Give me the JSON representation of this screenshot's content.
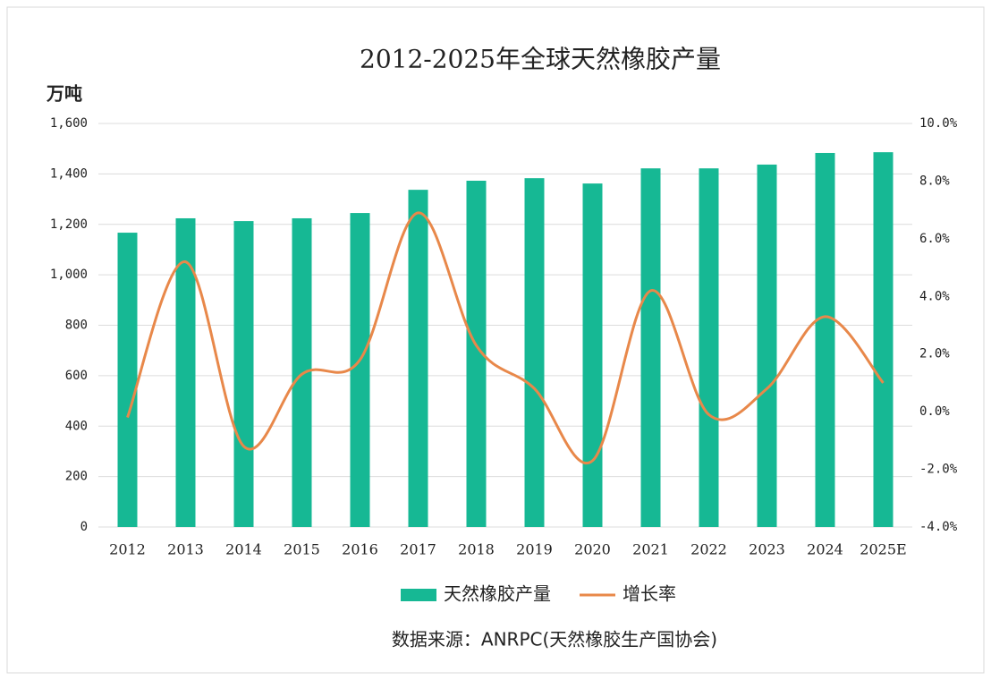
{
  "chart_data": {
    "type": "bar-line",
    "title": "2012-2025年全球天然橡胶产量",
    "y_label": "万吨",
    "source": "数据来源：ANRPC(天然橡胶生产国协会)",
    "categories": [
      "2012",
      "2013",
      "2014",
      "2015",
      "2016",
      "2017",
      "2018",
      "2019",
      "2020",
      "2021",
      "2022",
      "2023",
      "2024",
      "2025E"
    ],
    "series": [
      {
        "name": "天然橡胶产量",
        "type": "bar",
        "color": "#16b894",
        "values": [
          1167,
          1224,
          1213,
          1224,
          1245,
          1337,
          1373,
          1383,
          1362,
          1422,
          1422,
          1437,
          1483,
          1486
        ]
      },
      {
        "name": "增长率",
        "type": "line",
        "axis": "y2",
        "color": "#e8884a",
        "values": [
          -0.2,
          5.2,
          -1.2,
          1.3,
          1.8,
          6.9,
          2.3,
          0.8,
          -1.7,
          4.2,
          -0.1,
          0.8,
          3.3,
          1.0
        ]
      }
    ],
    "ylim": [
      0,
      1600
    ],
    "yticks": [
      0,
      200,
      400,
      600,
      800,
      {
        "value": 1000,
        "label": "1,000"
      },
      {
        "value": 1200,
        "label": "1,200"
      },
      {
        "value": 1400,
        "label": "1,400"
      },
      {
        "value": 1600,
        "label": "1,600"
      }
    ],
    "y2lim": [
      -4,
      10
    ],
    "y2ticks": [
      {
        "value": -4,
        "label": "-4.0%"
      },
      {
        "value": -2,
        "label": "-2.0%"
      },
      {
        "value": 0,
        "label": "0.0%"
      },
      {
        "value": 2,
        "label": "2.0%"
      },
      {
        "value": 4,
        "label": "4.0%"
      },
      {
        "value": 6,
        "label": "6.0%"
      },
      {
        "value": 8,
        "label": "8.0%"
      },
      {
        "value": 10,
        "label": "10.0%"
      }
    ],
    "grid": true
  }
}
